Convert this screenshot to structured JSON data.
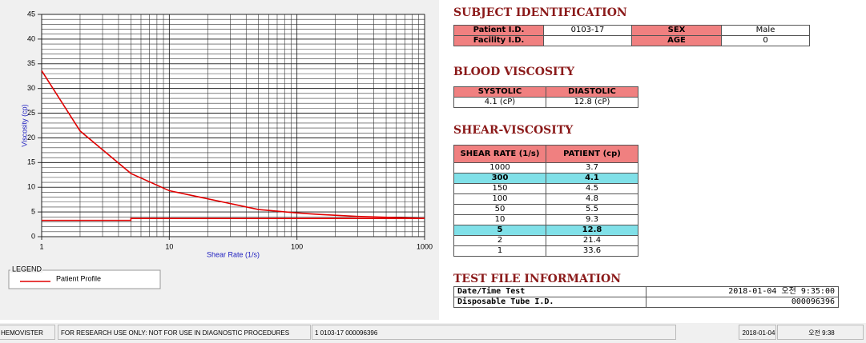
{
  "chart_data": {
    "type": "line",
    "x_label": "Shear Rate (1/s)",
    "y_label": "Viscosity (cp)",
    "xscale": "log",
    "xlim": [
      1,
      1000
    ],
    "xticks": [
      1,
      10,
      100,
      1000
    ],
    "ylim": [
      0,
      45
    ],
    "yticks": [
      0,
      5,
      10,
      15,
      20,
      25,
      30,
      35,
      40,
      45
    ],
    "grid": true,
    "legend_title": "LEGEND",
    "series": [
      {
        "name": "Patient Profile",
        "color": "#e00000",
        "x": [
          1,
          2,
          5,
          10,
          50,
          100,
          150,
          300,
          1000
        ],
        "values": [
          33.6,
          21.4,
          12.8,
          9.3,
          5.5,
          4.8,
          4.5,
          4.1,
          3.7
        ]
      },
      {
        "color": "#e00000",
        "x": [
          1,
          5,
          5,
          1000
        ],
        "values": [
          3.3,
          3.3,
          3.7,
          3.7
        ]
      }
    ]
  },
  "subject_identification": {
    "title": "SUBJECT IDENTIFICATION",
    "rows": [
      [
        "Patient I.D.",
        "0103-17",
        "SEX",
        "Male"
      ],
      [
        "Facility I.D.",
        null,
        "AGE",
        "0"
      ]
    ]
  },
  "blood_viscosity": {
    "title": "BLOOD VISCOSITY",
    "header": [
      "SYSTOLIC",
      "DIASTOLIC"
    ],
    "rows": [
      [
        "4.1 (cP)",
        "12.8 (cP)"
      ]
    ]
  },
  "shear_viscosity": {
    "title": "SHEAR-VISCOSITY",
    "header": [
      "SHEAR RATE (1/s)",
      "PATIENT (cp)"
    ],
    "rows": [
      [
        "1000",
        "3.7"
      ],
      [
        "300",
        "4.1"
      ],
      [
        "150",
        "4.5"
      ],
      [
        "100",
        "4.8"
      ],
      [
        "50",
        "5.5"
      ],
      [
        "10",
        "9.3"
      ],
      [
        "5",
        "12.8"
      ],
      [
        "2",
        "21.4"
      ],
      [
        "1",
        "33.6"
      ]
    ],
    "highlight_rows": [
      1,
      6
    ]
  },
  "test_file_information": {
    "title": "TEST FILE INFORMATION",
    "rows": [
      [
        "Date/Time Test",
        "2018-01-04  오전 9:35:00"
      ],
      [
        "Disposable Tube I.D.",
        "000096396"
      ]
    ]
  },
  "status_bar": [
    "HEMOVISTER",
    "FOR RESEARCH USE ONLY: NOT FOR USE IN DIAGNOSTIC PROCEDURES",
    "1  0103-17  000096396",
    "2018-01-04",
    "오전 9:38"
  ]
}
